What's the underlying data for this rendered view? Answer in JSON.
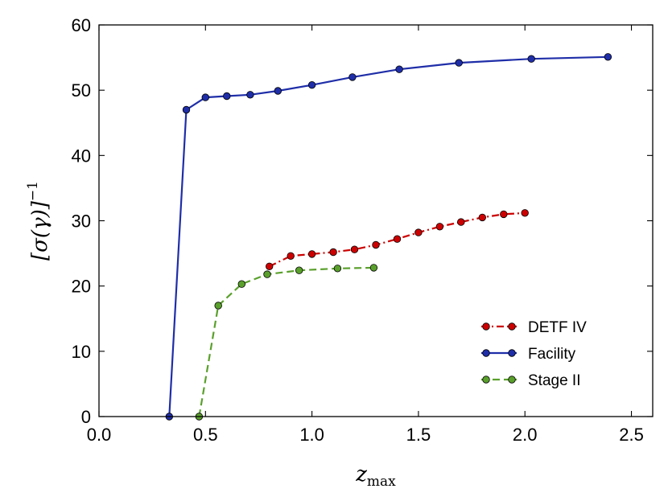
{
  "chart_data": {
    "type": "line",
    "title": "",
    "xlabel": "z_max",
    "ylabel": "[σ(γ)]^−1",
    "xlim": [
      0.0,
      2.6
    ],
    "ylim": [
      0,
      60
    ],
    "xticks": [
      "0.0",
      "0.5",
      "1.0",
      "1.5",
      "2.0",
      "2.5"
    ],
    "yticks": [
      "0",
      "10",
      "20",
      "30",
      "40",
      "50",
      "60"
    ],
    "grid": false,
    "legend_position": "lower-right",
    "series": [
      {
        "name": "DETF IV",
        "color": "#cc0000",
        "line_style": "dashdot",
        "x": [
          0.8,
          0.9,
          1.0,
          1.1,
          1.2,
          1.3,
          1.4,
          1.5,
          1.6,
          1.7,
          1.8,
          1.9,
          2.0
        ],
        "y": [
          23.0,
          24.6,
          24.9,
          25.2,
          25.6,
          26.3,
          27.2,
          28.2,
          29.1,
          29.8,
          30.5,
          31.0,
          31.2
        ]
      },
      {
        "name": "Facility",
        "color": "#1f2ea8",
        "line_style": "solid",
        "x": [
          0.33,
          0.41,
          0.5,
          0.6,
          0.71,
          0.84,
          1.0,
          1.19,
          1.41,
          1.69,
          2.03,
          2.39
        ],
        "y": [
          0,
          47.0,
          48.9,
          49.1,
          49.3,
          49.9,
          50.8,
          52.0,
          53.2,
          54.2,
          54.8,
          55.1
        ]
      },
      {
        "name": "Stage II",
        "color": "#5aa02c",
        "line_style": "dashed",
        "x": [
          0.47,
          0.56,
          0.67,
          0.79,
          0.94,
          1.12,
          1.29
        ],
        "y": [
          0,
          17.0,
          20.3,
          21.8,
          22.4,
          22.7,
          22.8
        ]
      }
    ]
  }
}
